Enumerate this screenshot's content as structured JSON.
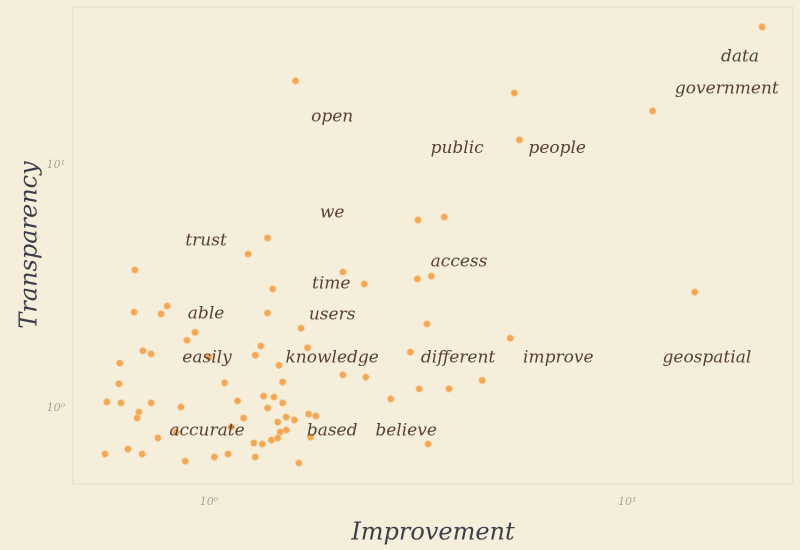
{
  "chart_data": {
    "type": "scatter",
    "x_label": "Improvement",
    "y_label": "Transparency",
    "log_x": true,
    "log_y": true,
    "grid": false,
    "color": "#f39a3a",
    "xlim": [
      0.473,
      24.9
    ],
    "ylim": [
      0.487,
      44.7
    ],
    "xticks": [
      {
        "value": 1,
        "label": "10⁰"
      },
      {
        "value": 10,
        "label": "10¹"
      }
    ],
    "yticks": [
      {
        "value": 1,
        "label": "10⁰"
      },
      {
        "value": 10,
        "label": "10¹"
      }
    ],
    "x": [
      21.0,
      1.61,
      5.37,
      11.5,
      5.52,
      3.16,
      3.65,
      1.38,
      1.24,
      0.665,
      2.09,
      3.4,
      3.15,
      2.35,
      1.42,
      14.5,
      0.794,
      0.662,
      0.768,
      1.38,
      3.32,
      1.66,
      0.926,
      5.25,
      0.886,
      1.33,
      1.72,
      0.695,
      0.727,
      3.03,
      1.29,
      0.612,
      1.47,
      1.0,
      2.09,
      2.37,
      4.5,
      1.09,
      0.609,
      1.5,
      3.75,
      3.18,
      1.35,
      1.43,
      2.72,
      1.17,
      0.57,
      0.616,
      0.727,
      1.5,
      0.857,
      1.38,
      0.68,
      0.673,
      1.73,
      1.8,
      1.21,
      1.53,
      1.6,
      1.46,
      1.13,
      1.53,
      1.48,
      0.834,
      1.46,
      0.755,
      1.75,
      1.41,
      1.28,
      1.34,
      3.34,
      0.64,
      0.564,
      0.692,
      1.11,
      1.03,
      1.29,
      0.877,
      1.64
    ],
    "y": [
      37.0,
      22.2,
      19.8,
      16.7,
      12.7,
      5.94,
      6.11,
      5.01,
      4.3,
      3.7,
      3.63,
      3.49,
      3.4,
      3.24,
      3.09,
      3.0,
      2.63,
      2.48,
      2.44,
      2.46,
      2.22,
      2.13,
      2.05,
      1.94,
      1.9,
      1.8,
      1.77,
      1.72,
      1.67,
      1.7,
      1.65,
      1.53,
      1.5,
      1.62,
      1.37,
      1.34,
      1.3,
      1.27,
      1.26,
      1.28,
      1.2,
      1.2,
      1.12,
      1.11,
      1.09,
      1.07,
      1.06,
      1.05,
      1.05,
      1.05,
      1.01,
      1.0,
      0.963,
      0.91,
      0.945,
      0.927,
      0.91,
      0.918,
      0.893,
      0.876,
      0.835,
      0.812,
      0.797,
      0.797,
      0.753,
      0.753,
      0.76,
      0.738,
      0.718,
      0.711,
      0.711,
      0.678,
      0.647,
      0.647,
      0.647,
      0.629,
      0.629,
      0.605,
      0.594
    ],
    "labels": [
      {
        "text": "data",
        "x": 18.6,
        "y": 27.8
      },
      {
        "text": "government",
        "x": 17.3,
        "y": 20.6
      },
      {
        "text": "open",
        "x": 1.97,
        "y": 15.8
      },
      {
        "text": "public",
        "x": 3.92,
        "y": 11.7
      },
      {
        "text": "people",
        "x": 6.8,
        "y": 11.7
      },
      {
        "text": "we",
        "x": 1.97,
        "y": 6.35
      },
      {
        "text": "trust",
        "x": 0.984,
        "y": 4.87
      },
      {
        "text": "access",
        "x": 3.96,
        "y": 3.99
      },
      {
        "text": "time",
        "x": 1.96,
        "y": 3.24
      },
      {
        "text": "able",
        "x": 0.984,
        "y": 2.44
      },
      {
        "text": "users",
        "x": 1.97,
        "y": 2.41
      },
      {
        "text": "easily",
        "x": 0.989,
        "y": 1.61
      },
      {
        "text": "knowledge",
        "x": 1.97,
        "y": 1.61
      },
      {
        "text": "different",
        "x": 3.94,
        "y": 1.61
      },
      {
        "text": "improve",
        "x": 6.84,
        "y": 1.61
      },
      {
        "text": "geospatial",
        "x": 15.5,
        "y": 1.61
      },
      {
        "text": "accurate",
        "x": 0.989,
        "y": 0.805
      },
      {
        "text": "based",
        "x": 1.97,
        "y": 0.805
      },
      {
        "text": "believe",
        "x": 2.96,
        "y": 0.805
      }
    ]
  }
}
